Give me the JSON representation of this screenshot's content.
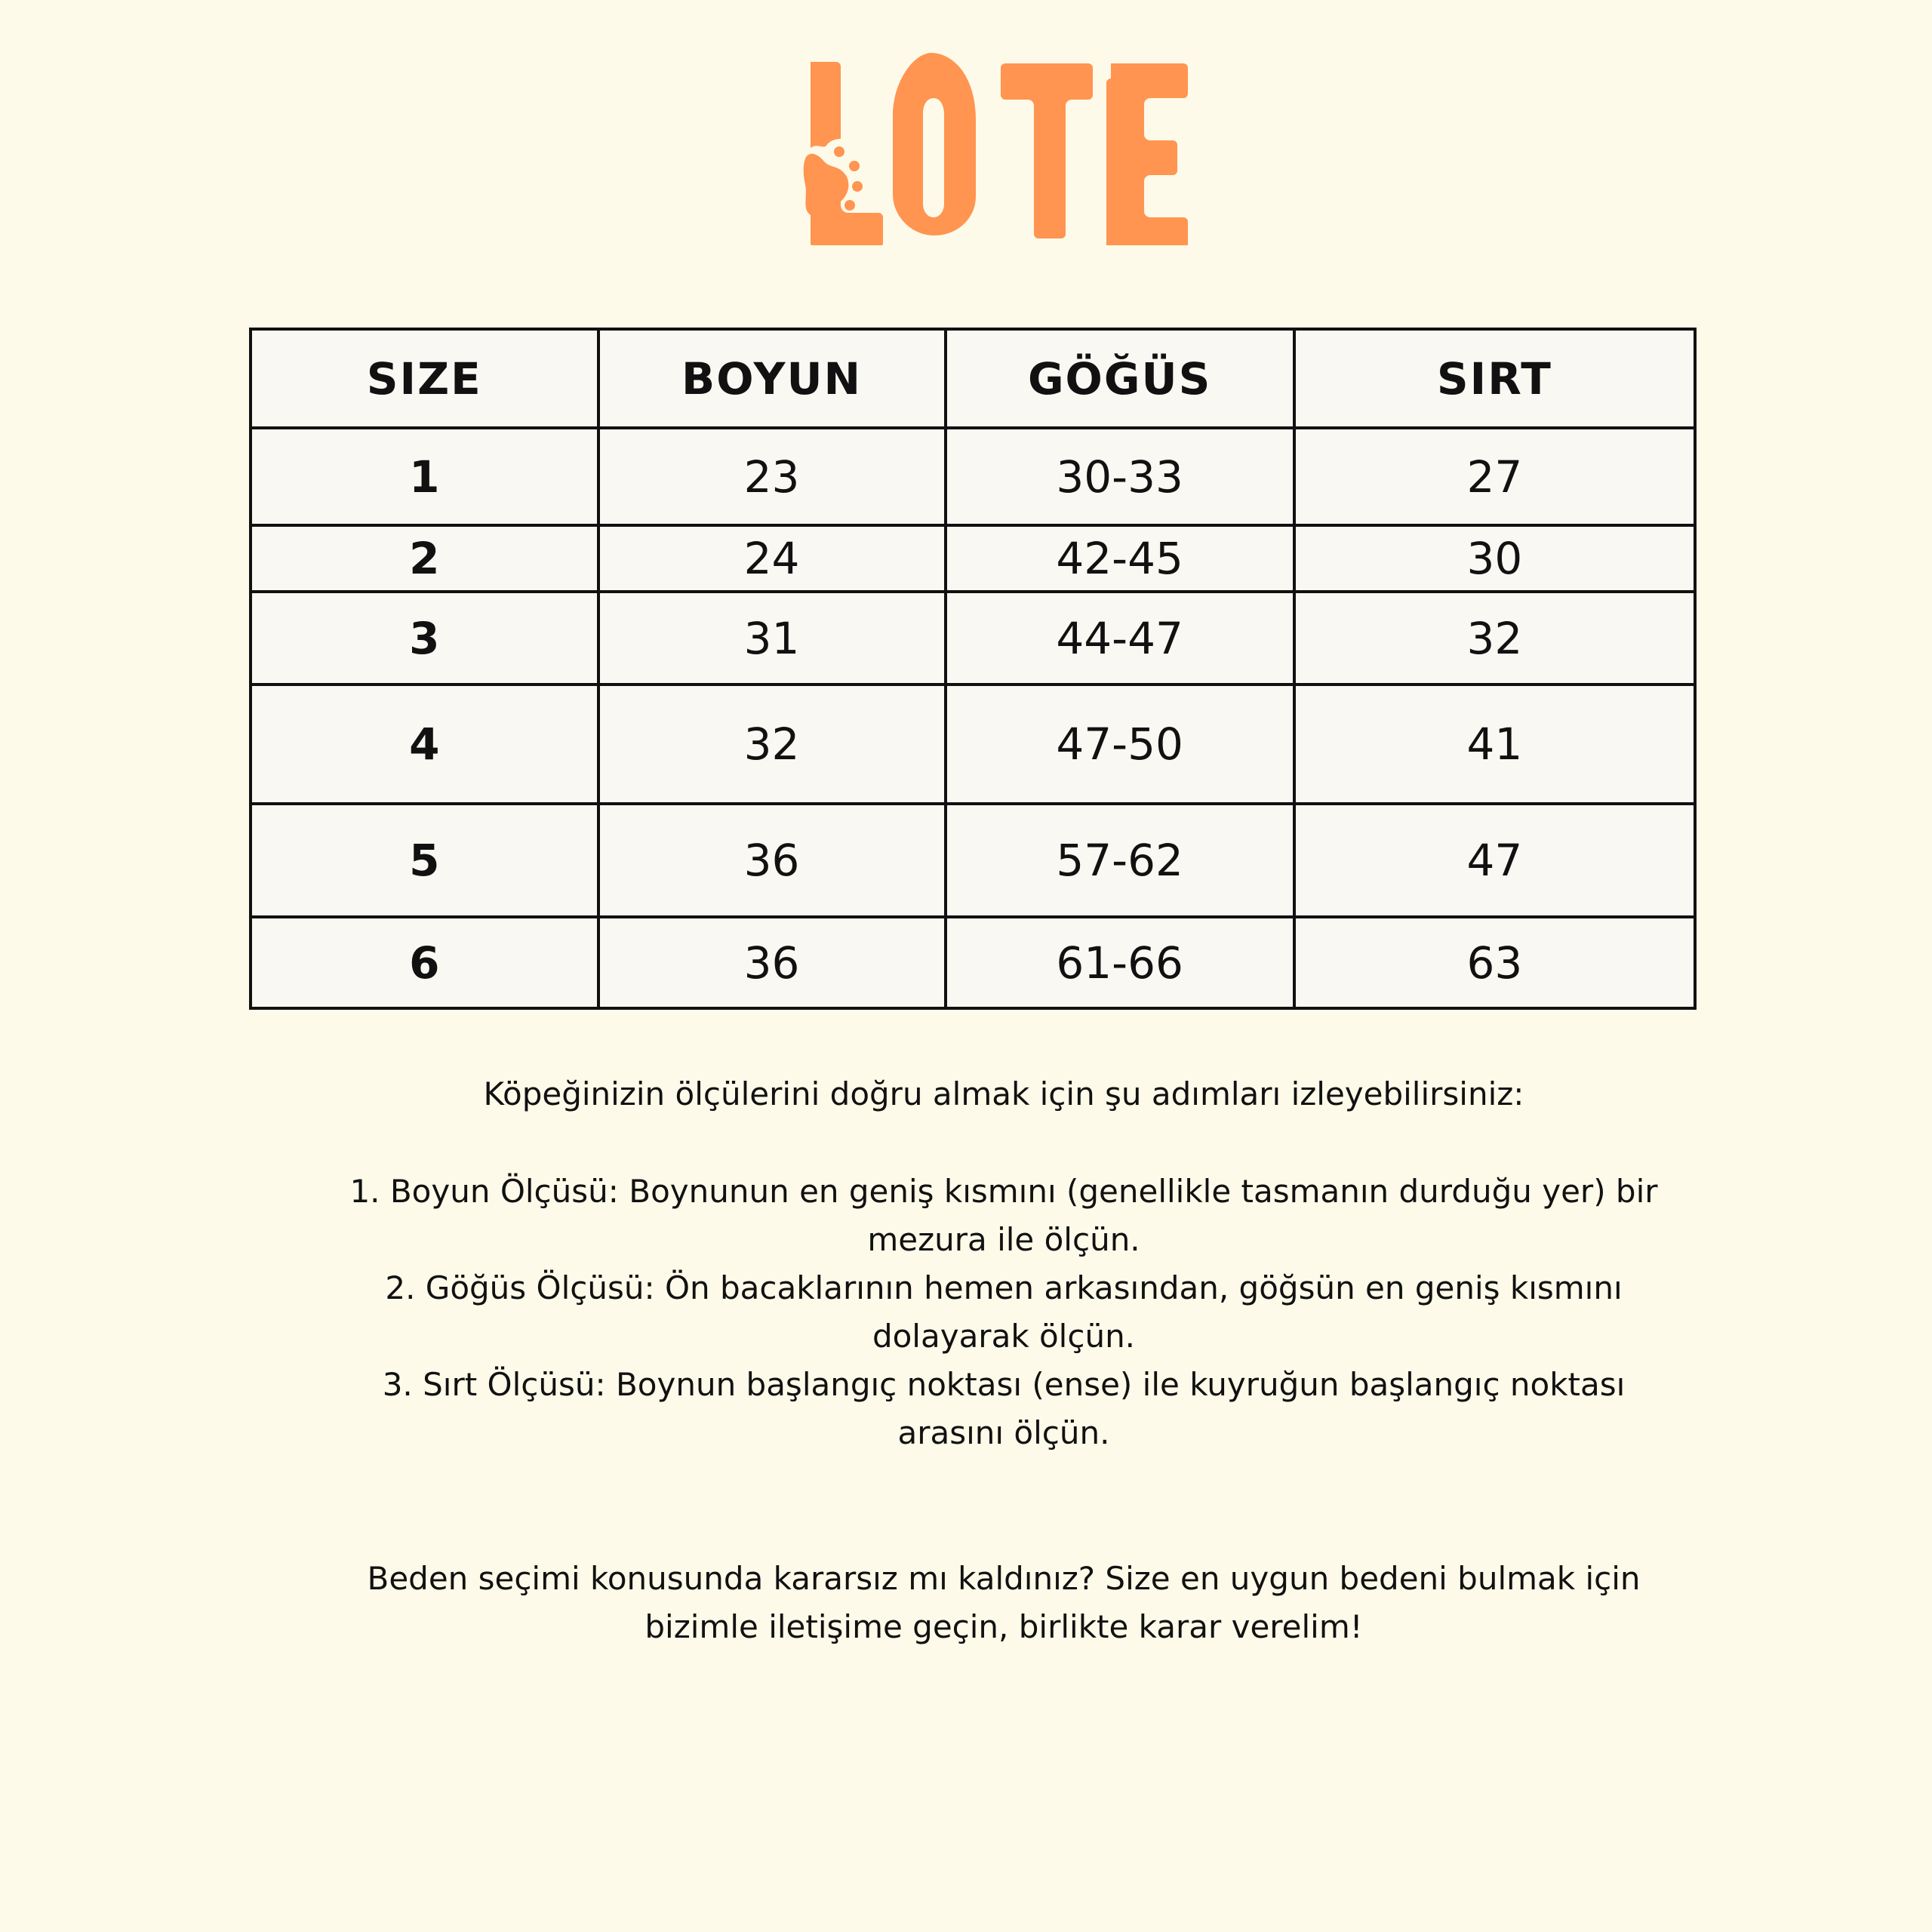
{
  "brand": {
    "logo_text": "LOTE",
    "color": "#ff9550",
    "icon": "paw-icon"
  },
  "table": {
    "headers": [
      "SIZE",
      "BOYUN",
      "GÖĞÜS",
      "SIRT"
    ],
    "rows": [
      [
        "1",
        "23",
        "30-33",
        "27"
      ],
      [
        "2",
        "24",
        "42-45",
        "30"
      ],
      [
        "3",
        "31",
        "44-47",
        "32"
      ],
      [
        "4",
        "32",
        "47-50",
        "41"
      ],
      [
        "5",
        "36",
        "57-62",
        "47"
      ],
      [
        "6",
        "36",
        "61-66",
        "63"
      ]
    ]
  },
  "instructions": {
    "intro": "Köpeğinizin ölçülerini doğru almak için şu adımları izleyebilirsiniz:",
    "steps": [
      "1. Boyun Ölçüsü: Boynunun en geniş kısmını (genellikle tasmanın durduğu yer) bir mezura ile ölçün.",
      "2. Göğüs Ölçüsü: Ön bacaklarının hemen arkasından, göğsün en geniş kısmını dolayarak ölçün.",
      "3. Sırt Ölçüsü: Boynun başlangıç noktası (ense) ile kuyruğun başlangıç noktası arasını ölçün."
    ],
    "outro": "Beden seçimi konusunda kararsız mı kaldınız? Size en uygun bedeni bulmak için bizimle iletişime geçin, birlikte karar verelim!"
  }
}
